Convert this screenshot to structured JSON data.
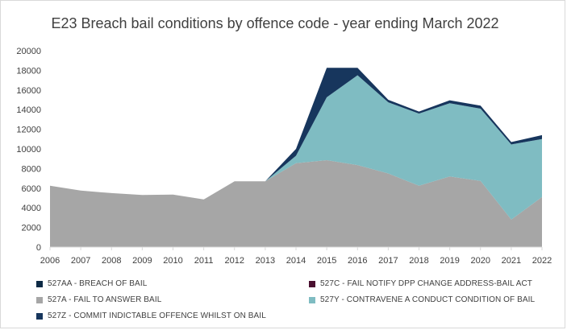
{
  "chart_data": {
    "type": "area",
    "stacked": true,
    "title": "E23 Breach bail conditions by offence code - year ending March 2022",
    "xlabel": "",
    "ylabel": "",
    "ylim": [
      0,
      20000
    ],
    "yticks": [
      0,
      2000,
      4000,
      6000,
      8000,
      10000,
      12000,
      14000,
      16000,
      18000,
      20000
    ],
    "grid": false,
    "legend_position": "bottom",
    "x": [
      "2006",
      "2007",
      "2008",
      "2009",
      "2010",
      "2011",
      "2012",
      "2013",
      "2014",
      "2015",
      "2016",
      "2017",
      "2018",
      "2019",
      "2020",
      "2021",
      "2022"
    ],
    "series": [
      {
        "name": "527A - FAIL TO ANSWER BAIL",
        "color": "#a6a6a6",
        "values": [
          6250,
          5750,
          5500,
          5300,
          5350,
          4850,
          6700,
          6700,
          8550,
          8850,
          8350,
          7500,
          6250,
          7200,
          6750,
          2800,
          5100
        ]
      },
      {
        "name": "527Y - CONTRAVENE A CONDUCT CONDITION OF BAIL",
        "color": "#7fbcc2",
        "values": [
          0,
          0,
          0,
          0,
          0,
          0,
          0,
          0,
          750,
          6400,
          9150,
          7250,
          7350,
          7450,
          7350,
          7650,
          5900
        ]
      },
      {
        "name": "527C - FAIL NOTIFY DPP CHANGE ADDRESS-BAIL ACT",
        "color": "#4a1030",
        "values": [
          0,
          0,
          0,
          0,
          0,
          0,
          0,
          0,
          0,
          0,
          0,
          0,
          0,
          0,
          0,
          0,
          0
        ]
      },
      {
        "name": "527Z - COMMIT INDICTABLE OFFENCE WHILST ON BAIL",
        "color": "#17365d",
        "values": [
          0,
          0,
          0,
          0,
          0,
          0,
          0,
          0,
          700,
          3000,
          750,
          250,
          200,
          300,
          300,
          250,
          400
        ]
      },
      {
        "name": "527AA - BREACH OF BAIL",
        "color": "#0d2a45",
        "values": [
          0,
          0,
          0,
          0,
          0,
          0,
          0,
          0,
          0,
          0,
          0,
          0,
          0,
          0,
          0,
          0,
          0
        ]
      }
    ]
  },
  "legend": {
    "items": [
      {
        "label": "527AA - BREACH OF BAIL",
        "color": "#0d2a45"
      },
      {
        "label": "527C - FAIL NOTIFY DPP CHANGE ADDRESS-BAIL ACT",
        "color": "#4a1030"
      },
      {
        "label": "527A - FAIL TO ANSWER BAIL",
        "color": "#a6a6a6"
      },
      {
        "label": "527Y - CONTRAVENE A CONDUCT CONDITION OF BAIL",
        "color": "#7fbcc2"
      },
      {
        "label": "527Z - COMMIT INDICTABLE OFFENCE WHILST ON BAIL",
        "color": "#17365d"
      }
    ]
  }
}
